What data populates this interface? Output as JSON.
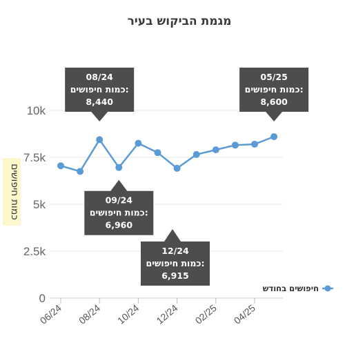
{
  "chart_data": {
    "type": "line",
    "title": "מגמת הביקוש בעיר",
    "ylabel": "כמות חיפושים",
    "xlabel": "",
    "ylim": [
      0,
      10000
    ],
    "y_ticks": [
      "0",
      "2.5k",
      "5k",
      "7.5k",
      "10k"
    ],
    "y_tick_values": [
      0,
      2500,
      5000,
      7500,
      10000
    ],
    "x_tick_labels": [
      "06/24",
      "08/24",
      "10/24",
      "12/24",
      "02/25",
      "04/25"
    ],
    "x": [
      "06/24",
      "07/24",
      "08/24",
      "09/24",
      "10/24",
      "11/24",
      "12/24",
      "01/25",
      "02/25",
      "03/25",
      "04/25",
      "05/25"
    ],
    "series": [
      {
        "name": "חיפושים בחודש",
        "color": "#5b9bd5",
        "values": [
          7050,
          6750,
          8440,
          6960,
          8250,
          7750,
          6915,
          7650,
          7900,
          8150,
          8200,
          8600
        ]
      }
    ],
    "legend_position": "right",
    "grid": "horizontal",
    "annotations": [
      {
        "x": "08/24",
        "date": "08/24",
        "label": "כמות חיפושים:",
        "value": "8,440"
      },
      {
        "x": "09/24",
        "date": "09/24",
        "label": "כמות חיפושים:",
        "value": "6,960"
      },
      {
        "x": "12/24",
        "date": "12/24",
        "label": "כמות חיפושים:",
        "value": "6,915"
      },
      {
        "x": "05/25",
        "date": "05/25",
        "label": "כמות חיפושים:",
        "value": "8,600"
      }
    ]
  },
  "colors": {
    "line": "#5b9bd5",
    "tooltip_bg": "#4d4d4d",
    "grid": "#e6e6e6",
    "ylabel_bg": "#fff7cc"
  }
}
